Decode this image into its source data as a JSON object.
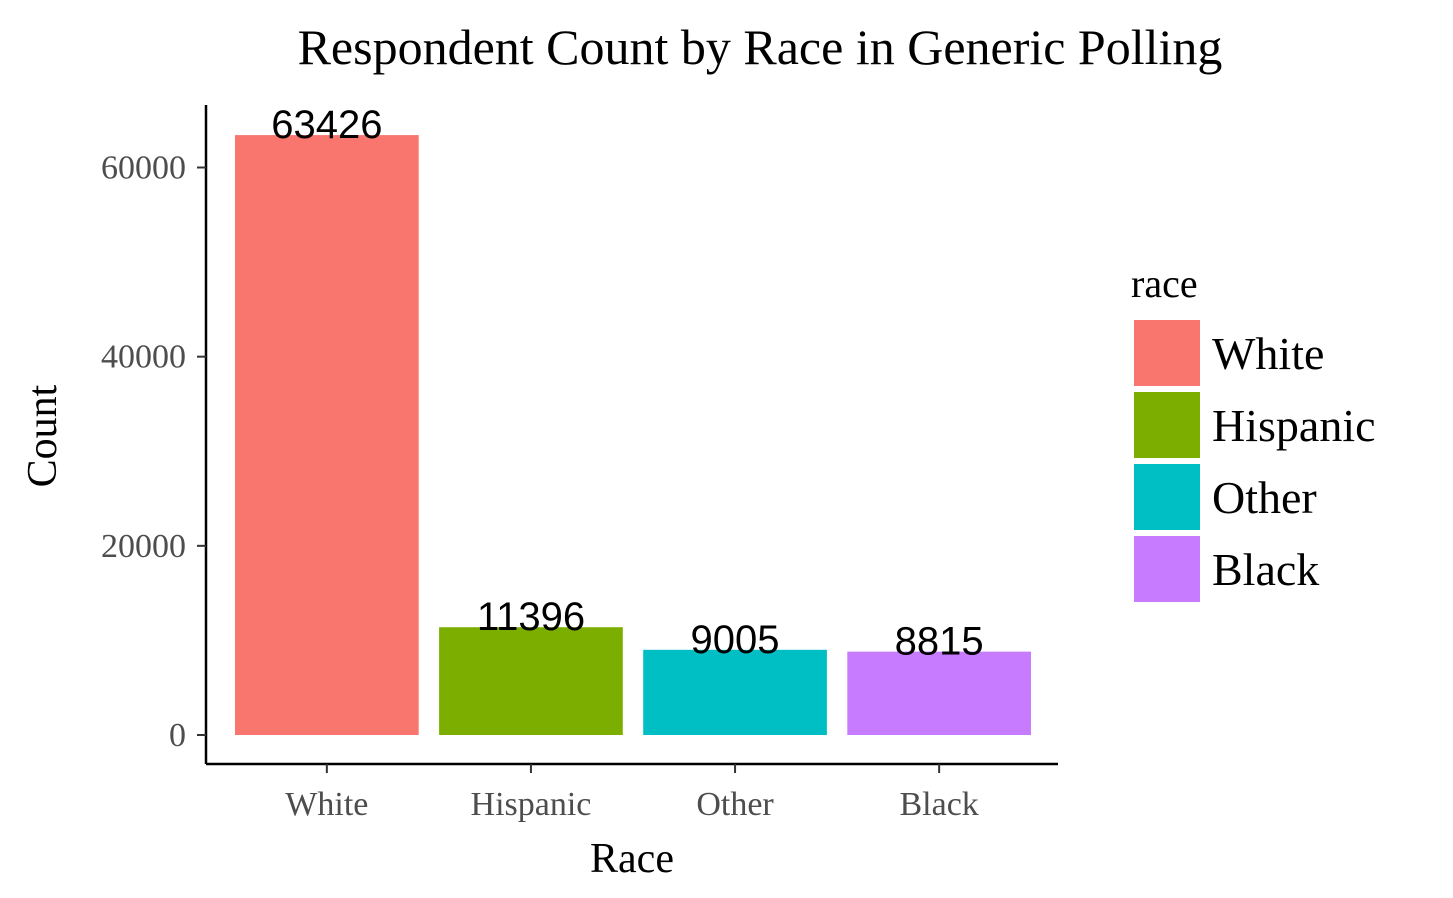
{
  "chart_data": {
    "type": "bar",
    "title": "Respondent Count by Race in Generic Polling",
    "xlabel": "Race",
    "ylabel": "Count",
    "categories": [
      "White",
      "Hispanic",
      "Other",
      "Black"
    ],
    "values": [
      63426,
      11396,
      9005,
      8815
    ],
    "data_labels": [
      "63426",
      "11396",
      "9005",
      "8815"
    ],
    "colors": [
      "#F8766D",
      "#7CAE00",
      "#00BFC4",
      "#C77CFF"
    ],
    "ylim": [
      0,
      66600
    ],
    "yticks": [
      0,
      20000,
      40000,
      60000
    ],
    "ytick_labels": [
      "0",
      "20000",
      "40000",
      "60000"
    ],
    "grid": false,
    "legend": {
      "title": "race",
      "position": "right",
      "entries": [
        "White",
        "Hispanic",
        "Other",
        "Black"
      ]
    }
  }
}
